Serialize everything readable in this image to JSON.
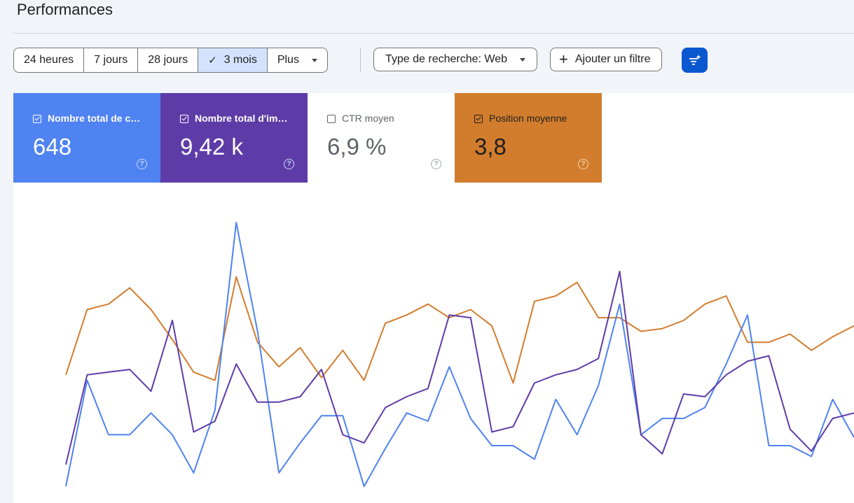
{
  "page": {
    "title": "Performances"
  },
  "time_range": {
    "options": [
      {
        "label": "24 heures",
        "selected": false
      },
      {
        "label": "7 jours",
        "selected": false
      },
      {
        "label": "28 jours",
        "selected": false
      },
      {
        "label": "3 mois",
        "selected": true
      },
      {
        "label": "Plus",
        "selected": false
      }
    ]
  },
  "filters": {
    "search_type_label": "Type de recherche: Web",
    "add_filter_label": "Ajouter un filtre"
  },
  "metrics": [
    {
      "label": "Nombre total de c…",
      "value": "648",
      "checked": true,
      "color": "#4f83f1"
    },
    {
      "label": "Nombre total d'im…",
      "value": "9,42 k",
      "checked": true,
      "color": "#5e3ca8"
    },
    {
      "label": "CTR moyen",
      "value": "6,9 %",
      "checked": false,
      "color": "#ffffff"
    },
    {
      "label": "Position moyenne",
      "value": "3,8",
      "checked": true,
      "color": "#d27d2d"
    }
  ],
  "chart_data": {
    "type": "line",
    "ylim": [
      0,
      100
    ],
    "x": [
      0,
      1,
      2,
      3,
      4,
      5,
      6,
      7,
      8,
      9,
      10,
      11,
      12,
      13,
      14,
      15,
      16,
      17,
      18,
      19,
      20,
      21,
      22,
      23,
      24,
      25,
      26,
      27,
      28,
      29,
      30,
      31,
      32,
      33,
      34,
      35,
      36,
      37
    ],
    "series": [
      {
        "color": "#d27d2d",
        "values": [
          44,
          68,
          70,
          76,
          68,
          57,
          45,
          42,
          80,
          56,
          47,
          54,
          43,
          53,
          42,
          63,
          66,
          70,
          65,
          68,
          62,
          41,
          71,
          73,
          78,
          65,
          65,
          60,
          61,
          64,
          70,
          73,
          56,
          56,
          59,
          53,
          58,
          62
        ]
      },
      {
        "color": "#4f83f1",
        "values": [
          3,
          42,
          22,
          22,
          30,
          22,
          8,
          31,
          100,
          60,
          8,
          19,
          29,
          29,
          3,
          17,
          30,
          27,
          47,
          28,
          18,
          18,
          13,
          35,
          22,
          40,
          70,
          22,
          28,
          28,
          32,
          48,
          66,
          18,
          18,
          14,
          35,
          21
        ]
      },
      {
        "color": "#5e3ca8",
        "values": [
          11,
          44,
          45,
          46,
          38,
          64,
          23,
          27,
          48,
          34,
          34,
          36,
          46,
          22,
          19,
          32,
          36,
          39,
          66,
          65,
          23,
          25,
          41,
          44,
          46,
          50,
          82,
          22,
          15,
          37,
          36,
          44,
          49,
          51,
          24,
          16,
          28,
          30
        ]
      }
    ]
  }
}
